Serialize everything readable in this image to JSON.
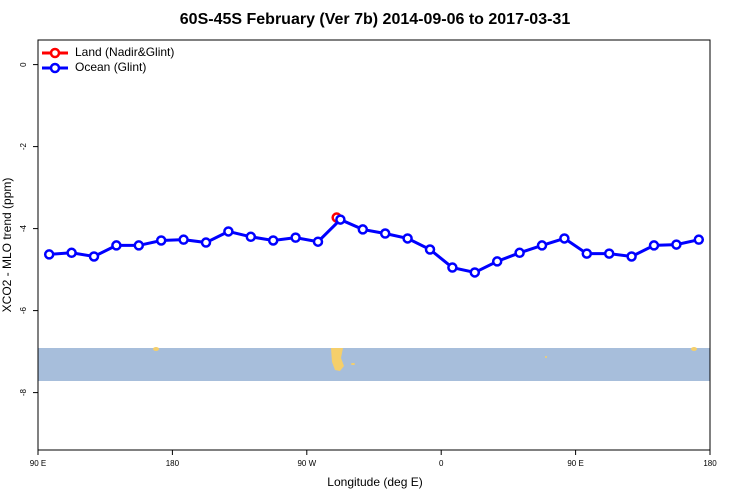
{
  "chart_data": {
    "type": "line",
    "title": "60S-45S February (Ver 7b)   2014-09-06 to 2017-03-31",
    "x_label": "Longitude (deg E)",
    "y_label": "XCO2 - MLO trend (ppm)",
    "xlim": [
      90,
      540
    ],
    "xticks": [
      {
        "value": 90,
        "label": "90 E"
      },
      {
        "value": 180,
        "label": "180"
      },
      {
        "value": 270,
        "label": "90 W"
      },
      {
        "value": 360,
        "label": "0"
      },
      {
        "value": 450,
        "label": "90 E"
      },
      {
        "value": 540,
        "label": "180"
      }
    ],
    "ylim": [
      -9.4,
      0.6
    ],
    "yticks": [
      0,
      -2,
      -4,
      -6,
      -8
    ],
    "legend": "top-left",
    "series": [
      {
        "name": "Land (Nadir&Glint)",
        "color": "#ff0000",
        "x": [
          290
        ],
        "values": [
          -3.73
        ]
      },
      {
        "name": "Ocean (Glint)",
        "color": "#0000ff",
        "x": [
          97.5,
          112.5,
          127.5,
          142.5,
          157.5,
          172.5,
          187.5,
          202.5,
          217.5,
          232.5,
          247.5,
          262.5,
          277.5,
          292.5,
          307.5,
          322.5,
          337.5,
          352.5,
          367.5,
          382.5,
          397.5,
          412.5,
          427.5,
          442.5,
          457.5,
          472.5,
          487.5,
          502.5,
          517.5,
          532.5
        ],
        "values": [
          -4.63,
          -4.59,
          -4.68,
          -4.41,
          -4.41,
          -4.29,
          -4.27,
          -4.34,
          -4.07,
          -4.2,
          -4.29,
          -4.22,
          -4.32,
          -3.78,
          -4.02,
          -4.12,
          -4.24,
          -4.51,
          -4.95,
          -5.07,
          -4.8,
          -4.59,
          -4.41,
          -4.24,
          -4.61,
          -4.61,
          -4.68,
          -4.41,
          -4.39,
          -4.27
        ]
      }
    ]
  }
}
